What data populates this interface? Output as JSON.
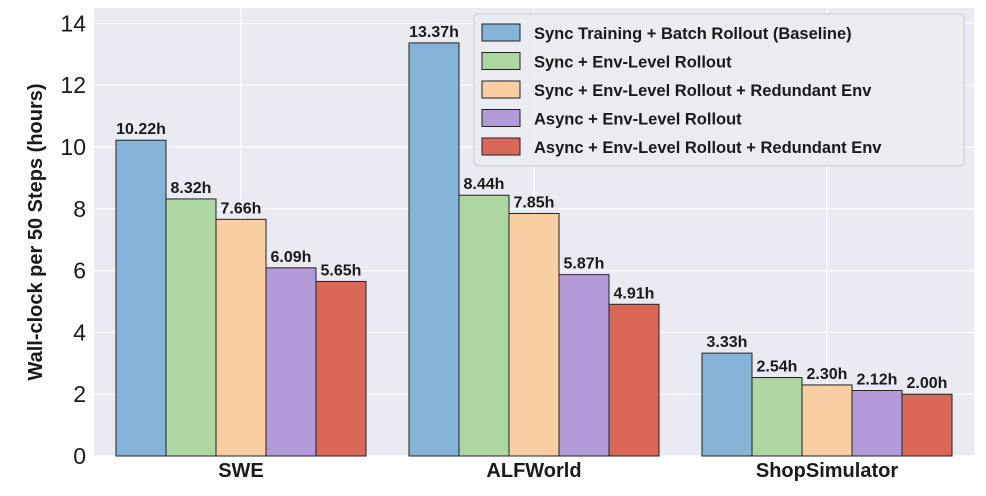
{
  "chart_data": {
    "type": "bar",
    "title": "",
    "xlabel": "",
    "ylabel": "Wall-clock per 50 Steps (hours)",
    "ylim": [
      0,
      14.5
    ],
    "yticks": [
      "0",
      "2",
      "4",
      "6",
      "8",
      "10",
      "12",
      "14"
    ],
    "grid": true,
    "legend_position": "top-right",
    "categories": [
      "SWE",
      "ALFWorld",
      "ShopSimulator"
    ],
    "series": [
      {
        "name": "Sync Training + Batch Rollout (Baseline)",
        "color": "#86b4d8",
        "values": [
          10.22,
          13.37,
          3.33
        ],
        "labels": [
          "10.22h",
          "13.37h",
          "3.33h"
        ]
      },
      {
        "name": "Sync + Env-Level Rollout",
        "color": "#aed6a2",
        "values": [
          8.32,
          8.44,
          2.54
        ],
        "labels": [
          "8.32h",
          "8.44h",
          "2.54h"
        ]
      },
      {
        "name": "Sync + Env-Level Rollout + Redundant Env",
        "color": "#f7cfa2",
        "values": [
          7.66,
          7.85,
          2.3
        ],
        "labels": [
          "7.66h",
          "7.85h",
          "2.30h"
        ]
      },
      {
        "name": "Async + Env-Level Rollout",
        "color": "#b39bd9",
        "values": [
          6.09,
          5.87,
          2.12
        ],
        "labels": [
          "6.09h",
          "5.87h",
          "2.12h"
        ]
      },
      {
        "name": "Async + Env-Level Rollout + Redundant Env",
        "color": "#da6858",
        "values": [
          5.65,
          4.91,
          2.0
        ],
        "labels": [
          "5.65h",
          "4.91h",
          "2.00h"
        ]
      }
    ]
  }
}
